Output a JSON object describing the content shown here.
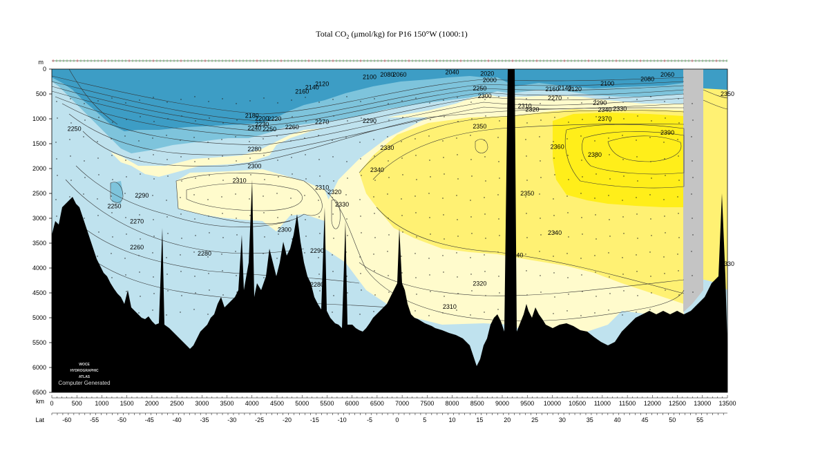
{
  "chart_data": {
    "type": "heatmap",
    "title": "Total CO",
    "title_sub": "2",
    "title_rest": " (μmol/kg) for P16 150°W (1000:1)",
    "ylabel_unit": "m",
    "xlabel_unit": "km",
    "lat_label": "Lat",
    "depth_ticks": [
      0,
      500,
      1000,
      1500,
      2000,
      2500,
      3000,
      3500,
      4000,
      4500,
      5000,
      5500,
      6000,
      6500
    ],
    "depth_range": [
      0,
      6500
    ],
    "km_ticks": [
      0,
      500,
      1000,
      1500,
      2000,
      2500,
      3000,
      3500,
      4000,
      4500,
      5000,
      5500,
      6000,
      6500,
      7000,
      7500,
      8000,
      8500,
      9000,
      9500,
      10000,
      10500,
      11000,
      11500,
      12000,
      12500,
      13000,
      13500
    ],
    "km_range": [
      0,
      13500
    ],
    "lat_ticks": [
      {
        "lat": -60,
        "km": 300
      },
      {
        "lat": -55,
        "km": 850
      },
      {
        "lat": -50,
        "km": 1400
      },
      {
        "lat": -45,
        "km": 1950
      },
      {
        "lat": -40,
        "km": 2500
      },
      {
        "lat": -35,
        "km": 3050
      },
      {
        "lat": -30,
        "km": 3600
      },
      {
        "lat": -25,
        "km": 4150
      },
      {
        "lat": -20,
        "km": 4700
      },
      {
        "lat": -15,
        "km": 5250
      },
      {
        "lat": -10,
        "km": 5800
      },
      {
        "lat": -5,
        "km": 6350
      },
      {
        "lat": 0,
        "km": 6900
      },
      {
        "lat": 5,
        "km": 7450
      },
      {
        "lat": 10,
        "km": 8000
      },
      {
        "lat": 15,
        "km": 8550
      },
      {
        "lat": 20,
        "km": 9100
      },
      {
        "lat": 25,
        "km": 9650
      },
      {
        "lat": 30,
        "km": 10200
      },
      {
        "lat": 35,
        "km": 10750
      },
      {
        "lat": 40,
        "km": 11300
      },
      {
        "lat": 45,
        "km": 11850
      },
      {
        "lat": 50,
        "km": 12400
      },
      {
        "lat": 55,
        "km": 12950
      }
    ],
    "color_scale": [
      {
        "below": 2160,
        "color": "#3d9dc5"
      },
      {
        "below": 2250,
        "color": "#7ec4dc"
      },
      {
        "below": 2300,
        "color": "#bfe2ee"
      },
      {
        "below": 2340,
        "color": "#fffbcc"
      },
      {
        "below": 2360,
        "color": "#fff173"
      },
      {
        "below": 9999,
        "color": "#ffee1a"
      }
    ],
    "contour_labels": [
      {
        "text": "2100",
        "km": 6350,
        "d": 160
      },
      {
        "text": "2080",
        "km": 6700,
        "d": 110
      },
      {
        "text": "2060",
        "km": 6950,
        "d": 110
      },
      {
        "text": "2040",
        "km": 8000,
        "d": 60
      },
      {
        "text": "2020",
        "km": 8700,
        "d": 90
      },
      {
        "text": "2000",
        "km": 8750,
        "d": 220
      },
      {
        "text": "2060",
        "km": 12300,
        "d": 110
      },
      {
        "text": "2080",
        "km": 11900,
        "d": 200
      },
      {
        "text": "2100",
        "km": 11100,
        "d": 290
      },
      {
        "text": "2120",
        "km": 10450,
        "d": 400
      },
      {
        "text": "2140",
        "km": 10250,
        "d": 380
      },
      {
        "text": "2160",
        "km": 10000,
        "d": 400
      },
      {
        "text": "2270",
        "km": 10050,
        "d": 580
      },
      {
        "text": "2290",
        "km": 10950,
        "d": 680
      },
      {
        "text": "2300",
        "km": 8650,
        "d": 540
      },
      {
        "text": "2250",
        "km": 8550,
        "d": 390
      },
      {
        "text": "2160",
        "km": 5000,
        "d": 450
      },
      {
        "text": "2140",
        "km": 5200,
        "d": 370
      },
      {
        "text": "2120",
        "km": 5400,
        "d": 300
      },
      {
        "text": "2180",
        "km": 4000,
        "d": 940
      },
      {
        "text": "2230",
        "km": 4200,
        "d": 1110
      },
      {
        "text": "2240",
        "km": 4050,
        "d": 1190
      },
      {
        "text": "2250",
        "km": 4350,
        "d": 1210
      },
      {
        "text": "2260",
        "km": 4800,
        "d": 1170
      },
      {
        "text": "2220",
        "km": 4450,
        "d": 1000
      },
      {
        "text": "2200",
        "km": 4200,
        "d": 990
      },
      {
        "text": "2250",
        "km": 450,
        "d": 1200
      },
      {
        "text": "2270",
        "km": 5400,
        "d": 1060
      },
      {
        "text": "2290",
        "km": 6350,
        "d": 1040
      },
      {
        "text": "2310",
        "km": 9450,
        "d": 740
      },
      {
        "text": "2320",
        "km": 9600,
        "d": 810
      },
      {
        "text": "2340",
        "km": 11050,
        "d": 820
      },
      {
        "text": "2330",
        "km": 11350,
        "d": 800
      },
      {
        "text": "2370",
        "km": 11050,
        "d": 1000
      },
      {
        "text": "2350",
        "km": 8550,
        "d": 1150
      },
      {
        "text": "2390",
        "km": 12300,
        "d": 1280
      },
      {
        "text": "2350",
        "km": 13500,
        "d": 500
      },
      {
        "text": "2360",
        "km": 10100,
        "d": 1560
      },
      {
        "text": "2380",
        "km": 10850,
        "d": 1720
      },
      {
        "text": "2330",
        "km": 6700,
        "d": 1580
      },
      {
        "text": "2340",
        "km": 6500,
        "d": 2030
      },
      {
        "text": "2280",
        "km": 4050,
        "d": 1610
      },
      {
        "text": "2300",
        "km": 4050,
        "d": 1950
      },
      {
        "text": "2310",
        "km": 3750,
        "d": 2240
      },
      {
        "text": "2290",
        "km": 1800,
        "d": 2540
      },
      {
        "text": "2250",
        "km": 1250,
        "d": 2760
      },
      {
        "text": "2310",
        "km": 5400,
        "d": 2380
      },
      {
        "text": "2320",
        "km": 5650,
        "d": 2470
      },
      {
        "text": "2330",
        "km": 5800,
        "d": 2720
      },
      {
        "text": "2350",
        "km": 9500,
        "d": 2500
      },
      {
        "text": "2270",
        "km": 1700,
        "d": 3060
      },
      {
        "text": "2300",
        "km": 4650,
        "d": 3230
      },
      {
        "text": "2340",
        "km": 10050,
        "d": 3290
      },
      {
        "text": "2290",
        "km": 5300,
        "d": 3650
      },
      {
        "text": "2260",
        "km": 1700,
        "d": 3580
      },
      {
        "text": "2280",
        "km": 3050,
        "d": 3710
      },
      {
        "text": "2280",
        "km": 5300,
        "d": 4330
      },
      {
        "text": "2320",
        "km": 8550,
        "d": 4310
      },
      {
        "text": "2310",
        "km": 7950,
        "d": 4780
      },
      {
        "text": "2330",
        "km": 13500,
        "d": 3920
      },
      {
        "text": "40",
        "km": 9350,
        "d": 3740
      }
    ],
    "watermark_lines": [
      "WOCE",
      "HYDROGRAPHIC",
      "ATLAS"
    ],
    "watermark_footer": "Computer Generated"
  }
}
